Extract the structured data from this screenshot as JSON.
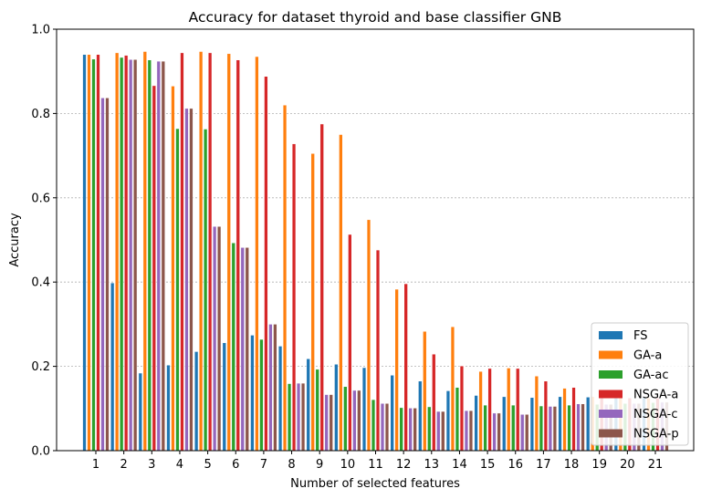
{
  "chart_data": {
    "type": "bar",
    "title": "Accuracy for dataset thyroid and base classifier GNB",
    "xlabel": "Number of selected features",
    "ylabel": "Accuracy",
    "ylim": [
      0,
      1.0
    ],
    "yticks": [
      "0.0",
      "0.2",
      "0.4",
      "0.6",
      "0.8",
      "1.0"
    ],
    "grid": "horizontal dotted",
    "legend_position": "bottom-right",
    "categories": [
      "1",
      "2",
      "3",
      "4",
      "5",
      "6",
      "7",
      "8",
      "9",
      "10",
      "11",
      "12",
      "13",
      "14",
      "15",
      "16",
      "17",
      "18",
      "19",
      "20",
      "21"
    ],
    "series": [
      {
        "name": "FS",
        "color": "#1f77b4",
        "values": [
          0.94,
          0.398,
          0.184,
          0.203,
          0.235,
          0.256,
          0.274,
          0.248,
          0.218,
          0.205,
          0.197,
          0.179,
          0.165,
          0.142,
          0.131,
          0.128,
          0.126,
          0.128,
          0.127,
          0.13,
          0.126
        ]
      },
      {
        "name": "GA-a",
        "color": "#ff7f0e",
        "values": [
          0.94,
          0.944,
          0.947,
          0.865,
          0.947,
          0.942,
          0.935,
          0.82,
          0.705,
          0.75,
          0.548,
          0.383,
          0.283,
          0.294,
          0.188,
          0.196,
          0.177,
          0.148,
          0.128,
          0.126,
          0.125
        ]
      },
      {
        "name": "GA-ac",
        "color": "#2ca02c",
        "values": [
          0.929,
          0.933,
          0.927,
          0.764,
          0.763,
          0.493,
          0.264,
          0.159,
          0.193,
          0.152,
          0.121,
          0.102,
          0.104,
          0.15,
          0.108,
          0.108,
          0.106,
          0.108,
          0.11,
          0.112,
          0.114
        ]
      },
      {
        "name": "NSGA-a",
        "color": "#d62728",
        "values": [
          0.94,
          0.938,
          0.866,
          0.944,
          0.944,
          0.927,
          0.888,
          0.728,
          0.775,
          0.513,
          0.476,
          0.396,
          0.229,
          0.201,
          0.195,
          0.195,
          0.165,
          0.15,
          0.13,
          0.125,
          0.125
        ]
      },
      {
        "name": "NSGA-c",
        "color": "#9467bd",
        "values": [
          0.837,
          0.928,
          0.924,
          0.812,
          0.532,
          0.482,
          0.3,
          0.16,
          0.133,
          0.143,
          0.112,
          0.101,
          0.093,
          0.095,
          0.089,
          0.086,
          0.105,
          0.111,
          0.11,
          0.112,
          0.115
        ]
      },
      {
        "name": "NSGA-p",
        "color": "#8c564b",
        "values": [
          0.837,
          0.928,
          0.924,
          0.812,
          0.532,
          0.482,
          0.3,
          0.16,
          0.133,
          0.143,
          0.112,
          0.101,
          0.093,
          0.095,
          0.089,
          0.086,
          0.105,
          0.111,
          0.11,
          0.112,
          0.115
        ]
      }
    ]
  }
}
